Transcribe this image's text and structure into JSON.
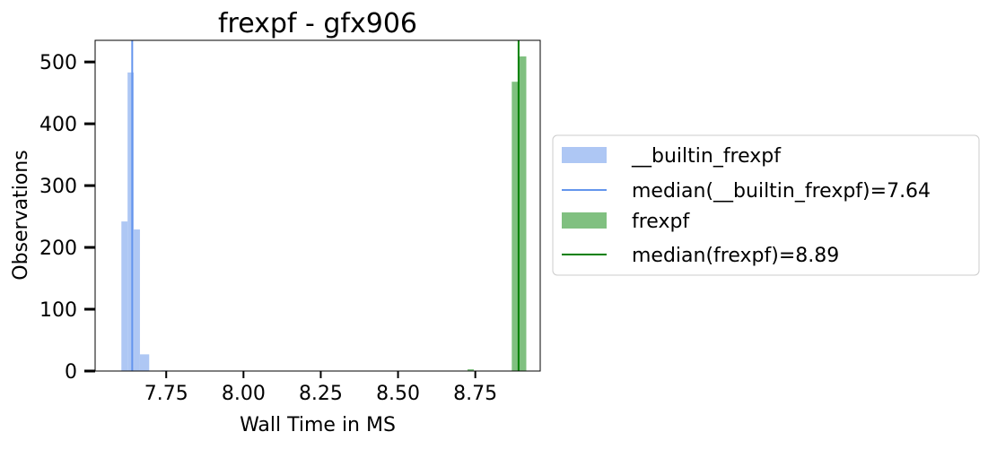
{
  "chart_data": {
    "type": "bar",
    "title": "frexpf - gfx906",
    "xlabel": "Wall Time in MS",
    "ylabel": "Observations",
    "xlim": [
      7.52,
      8.96
    ],
    "ylim": [
      0,
      535
    ],
    "xticks": [
      7.75,
      8.0,
      8.25,
      8.5,
      8.75
    ],
    "xtick_labels": [
      "7.75",
      "8.00",
      "8.25",
      "8.50",
      "8.75"
    ],
    "yticks": [
      0,
      100,
      200,
      300,
      400,
      500
    ],
    "ytick_labels": [
      "0",
      "100",
      "200",
      "300",
      "400",
      "500"
    ],
    "grid": false,
    "legend_position": "right-outside",
    "series": [
      {
        "name": "__builtin_frexpf",
        "color": "#aec7f4",
        "bins": [
          {
            "x0": 7.605,
            "x1": 7.625,
            "value": 242
          },
          {
            "x0": 7.625,
            "x1": 7.645,
            "value": 483
          },
          {
            "x0": 7.645,
            "x1": 7.665,
            "value": 229
          },
          {
            "x0": 7.665,
            "x1": 7.695,
            "value": 27
          },
          {
            "x0": 7.735,
            "x1": 7.755,
            "value": 1
          }
        ],
        "median": 7.64,
        "median_label": "median(__builtin_frexpf)=7.64",
        "median_color": "#6495ed"
      },
      {
        "name": "frexpf",
        "color": "#80c080",
        "bins": [
          {
            "x0": 8.725,
            "x1": 8.745,
            "value": 3
          },
          {
            "x0": 8.868,
            "x1": 8.892,
            "value": 468
          },
          {
            "x0": 8.892,
            "x1": 8.915,
            "value": 509
          }
        ],
        "median": 8.89,
        "median_label": "median(frexpf)=8.89",
        "median_color": "#008000"
      }
    ]
  }
}
